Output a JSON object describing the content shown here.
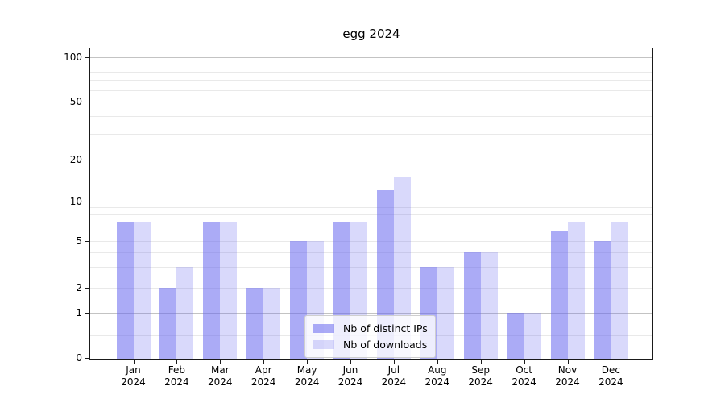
{
  "title": "egg 2024",
  "legend": {
    "items": [
      {
        "label": "Nb of distinct IPs",
        "color": "rgba(102,102,238,0.55)"
      },
      {
        "label": "Nb of downloads",
        "color": "rgba(102,102,238,0.25)"
      }
    ]
  },
  "axes": {
    "y_tick_labels": [
      "100",
      "50",
      "20",
      "10",
      "5",
      "2",
      "1",
      "0"
    ],
    "y_tick_values": [
      100,
      50,
      20,
      10,
      5,
      2,
      1,
      0
    ],
    "x_tick_labels": [
      "Jan 2024",
      "Feb 2024",
      "Mar 2024",
      "Apr 2024",
      "May 2024",
      "Jun 2024",
      "Jul 2024",
      "Aug 2024",
      "Sep 2024",
      "Oct 2024",
      "Nov 2024",
      "Dec 2024"
    ]
  },
  "chart_data": {
    "type": "bar",
    "title": "egg 2024",
    "categories": [
      "Jan 2024",
      "Feb 2024",
      "Mar 2024",
      "Apr 2024",
      "May 2024",
      "Jun 2024",
      "Jul 2024",
      "Aug 2024",
      "Sep 2024",
      "Oct 2024",
      "Nov 2024",
      "Dec 2024"
    ],
    "series": [
      {
        "name": "Nb of distinct IPs",
        "values": [
          7,
          2,
          7,
          2,
          5,
          7,
          12,
          3,
          4,
          1,
          6,
          5
        ]
      },
      {
        "name": "Nb of downloads",
        "values": [
          7,
          3,
          7,
          2,
          5,
          7,
          15,
          3,
          4,
          1,
          7,
          7
        ]
      }
    ],
    "xlabel": "",
    "ylabel": "",
    "yscale": "log-like (symlog)",
    "yticks": [
      0,
      1,
      2,
      5,
      10,
      20,
      50,
      100
    ],
    "major_gridlines": [
      1,
      10,
      100
    ],
    "minor_gridlines": [
      0.5,
      2,
      3,
      4,
      5,
      6,
      7,
      8,
      9,
      20,
      30,
      40,
      50,
      60,
      70,
      80,
      90
    ],
    "grid": true,
    "legend_position": "lower center",
    "colors": {
      "distinct_ips": "rgba(102,102,238,0.55)",
      "downloads": "rgba(102,102,238,0.25)"
    }
  }
}
